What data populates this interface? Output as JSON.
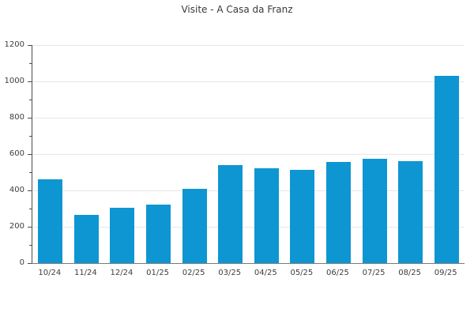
{
  "chart_data": {
    "type": "bar",
    "title": "Visite - A Casa da Franz",
    "categories": [
      "10/24",
      "11/24",
      "12/24",
      "01/25",
      "02/25",
      "03/25",
      "04/25",
      "05/25",
      "06/25",
      "07/25",
      "08/25",
      "09/25"
    ],
    "values": [
      460,
      265,
      305,
      320,
      410,
      540,
      520,
      515,
      555,
      575,
      560,
      1030
    ],
    "xlabel": "",
    "ylabel": "",
    "ylim": [
      0,
      1200
    ],
    "yticks_major": [
      0,
      200,
      400,
      600,
      800,
      1000,
      1200
    ],
    "yticks_minor": [
      100,
      300,
      500,
      700,
      900,
      1100
    ],
    "grid": true,
    "legend": false
  },
  "colors": {
    "bar": "#0e96d2",
    "gridline": "#e7e7e7",
    "axis": "#4d4d4d",
    "title_text": "#3a3a3a",
    "tick_text": "#3d3d3d",
    "background": "#ffffff"
  }
}
